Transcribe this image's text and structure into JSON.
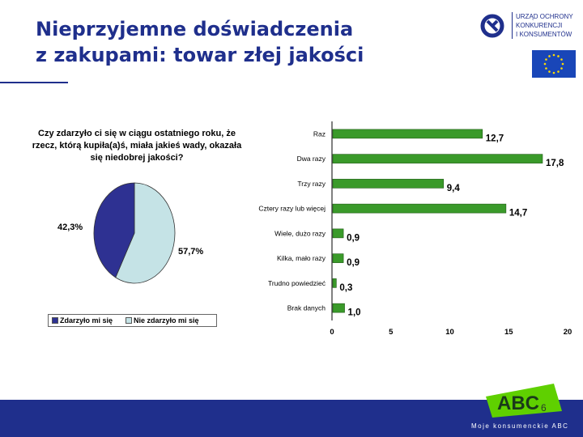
{
  "slide": {
    "title_line1": "Nieprzyjemne doświadczenia",
    "title_line2": "z zakupami: towar złej jakości",
    "logo_line1": "URZĄD OCHRONY",
    "logo_line2": "KONKURENCJI",
    "logo_line3": "I KONSUMENTÓW",
    "footer_text": "Moje konsumenckie ABC",
    "footer_logo_text": "ABC",
    "page_number": "6"
  },
  "chart_data": [
    {
      "type": "pie",
      "title_line1": "Czy zdarzyło ci się w ciągu ostatniego roku, że",
      "title_line2": "rzecz, którą kupiła(a)ś, miała jakieś wady, okazała",
      "title_line3": "się niedobrej jakości?",
      "slices": [
        {
          "label": "Zdarzyło mi się",
          "value": 42.3,
          "value_label": "42,3%",
          "color": "#2e3192"
        },
        {
          "label": "Nie zdarzyło mi się",
          "value": 57.7,
          "value_label": "57,7%",
          "color": "#c5e3e6"
        }
      ],
      "legend_position": "bottom"
    },
    {
      "type": "bar",
      "orientation": "horizontal",
      "categories": [
        "Raz",
        "Dwa razy",
        "Trzy razy",
        "Cztery razy lub więcej",
        "Wiele, dużo razy",
        "Kilka, mało razy",
        "Trudno powiedzieć",
        "Brak danych"
      ],
      "values": [
        12.7,
        17.8,
        9.4,
        14.7,
        0.9,
        0.9,
        0.3,
        1.0
      ],
      "value_labels": [
        "12,7",
        "17,8",
        "9,4",
        "14,7",
        "0,9",
        "0,9",
        "0,3",
        "1,0"
      ],
      "xlim": [
        0,
        20
      ],
      "xticks": [
        "0",
        "5",
        "10",
        "15",
        "20"
      ],
      "bar_color": "#3a9a2a",
      "grid": false
    }
  ]
}
